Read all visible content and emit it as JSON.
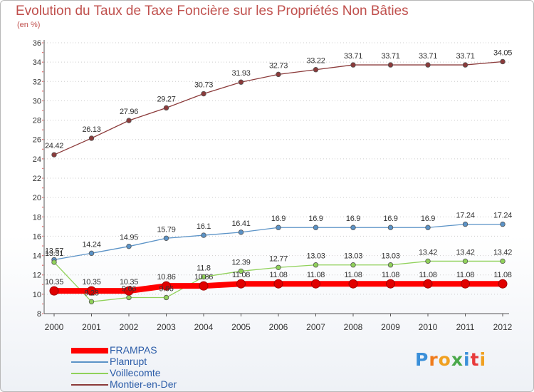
{
  "header": {
    "title": "Evolution du Taux de Taxe Foncière sur les Propriétés Non Bâties",
    "unit": "(en %)"
  },
  "logo": {
    "text": "Proxiti"
  },
  "chart_data": {
    "type": "line",
    "title": "Evolution du Taux de Taxe Foncière sur les Propriétés Non Bâties",
    "ylabel": "(en %)",
    "ylim": [
      8,
      36
    ],
    "yticks": [
      "8",
      "10",
      "12",
      "14",
      "16",
      "18",
      "20",
      "22",
      "24",
      "26",
      "28",
      "30",
      "32",
      "34",
      "36"
    ],
    "x": [
      "2000",
      "2001",
      "2002",
      "2003",
      "2004",
      "2005",
      "2006",
      "2007",
      "2008",
      "2009",
      "2010",
      "2011",
      "2012"
    ],
    "grid": "horizontal",
    "legend_position": "bottom-left",
    "series": [
      {
        "name": "FRAMPAS",
        "color": "#ff0000",
        "values": [
          10.35,
          10.35,
          10.35,
          10.86,
          10.86,
          11.08,
          11.08,
          11.08,
          11.08,
          11.08,
          11.08,
          11.08,
          11.08
        ],
        "labels": [
          "10.35",
          "10.35",
          "10.35",
          "10.86",
          "10.86",
          "11.08",
          "11.08",
          "11.08",
          "11.08",
          "11.08",
          "11.08",
          "11.08",
          "11.08"
        ]
      },
      {
        "name": "Planrupt",
        "color": "#5b93c7",
        "values": [
          13.57,
          14.24,
          14.95,
          15.79,
          16.1,
          16.41,
          16.9,
          16.9,
          16.9,
          16.9,
          16.9,
          17.24,
          17.24
        ],
        "labels": [
          "13.57",
          "14.24",
          "14.95",
          "15.79",
          "16.1",
          "16.41",
          "16.9",
          "16.9",
          "16.9",
          "16.9",
          "16.9",
          "17.24",
          "17.24"
        ]
      },
      {
        "name": "Voillecomte",
        "color": "#90d15a",
        "values": [
          13.31,
          9.23,
          9.66,
          9.66,
          11.8,
          12.39,
          12.77,
          13.03,
          13.03,
          13.03,
          13.42,
          13.42,
          13.42
        ],
        "labels": [
          "13.31",
          "9.23",
          "9.66",
          "9.66",
          "11.8",
          "12.39",
          "12.77",
          "13.03",
          "13.03",
          "13.03",
          "13.42",
          "13.42",
          "13.42"
        ]
      },
      {
        "name": "Montier-en-Der",
        "color": "#8b3a3a",
        "values": [
          24.42,
          26.13,
          27.96,
          29.27,
          30.73,
          31.93,
          32.73,
          33.22,
          33.71,
          33.71,
          33.71,
          33.71,
          34.05
        ],
        "labels": [
          "24.42",
          "26.13",
          "27.96",
          "29.27",
          "30.73",
          "31.93",
          "32.73",
          "33.22",
          "33.71",
          "33.71",
          "33.71",
          "33.71",
          "34.05"
        ]
      }
    ]
  }
}
